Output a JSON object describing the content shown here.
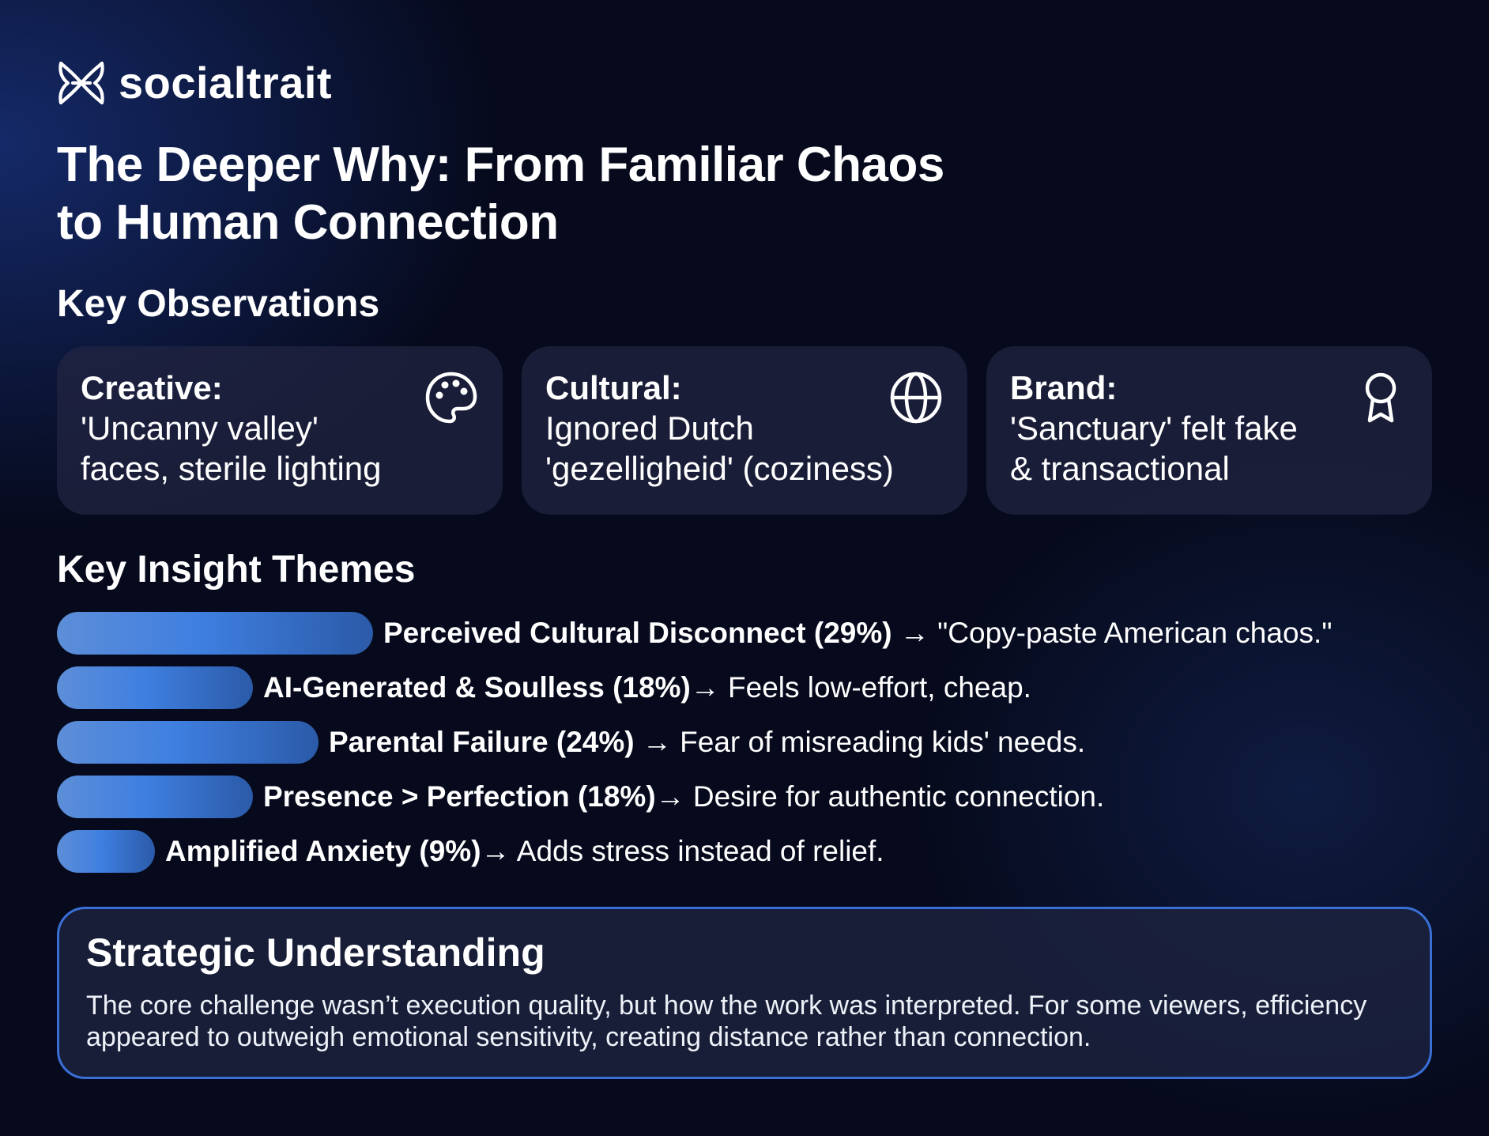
{
  "brand": {
    "name": "socialtrait",
    "icon": "butterfly-knot-logo"
  },
  "title": {
    "line1": "The Deeper Why: From Familiar Chaos",
    "line2": "to Human Connection"
  },
  "observations": {
    "heading": "Key Observations",
    "cards": [
      {
        "label": "Creative:",
        "line1": "'Uncanny valley'",
        "line2": "faces, sterile lighting",
        "icon": "palette-icon"
      },
      {
        "label": "Cultural:",
        "line1": "Ignored Dutch",
        "line2": "'gezelligheid' (coziness)",
        "icon": "globe-icon"
      },
      {
        "label": "Brand:",
        "line1": "'Sanctuary' felt fake",
        "line2": "& transactional",
        "icon": "award-ribbon-icon"
      }
    ]
  },
  "themes": {
    "heading": "Key Insight Themes",
    "items": [
      {
        "name": "Perceived Cultural Disconnect (29%)",
        "desc": " → \"Copy-paste American chaos.\"",
        "percent": 29
      },
      {
        "name": "AI-Generated & Soulless (18%)",
        "desc": "→ Feels low-effort, cheap.",
        "percent": 18
      },
      {
        "name": "Parental Failure (24%)",
        "desc": " → Fear of misreading kids' needs.",
        "percent": 24
      },
      {
        "name": "Presence > Perfection (18%)",
        "desc": "→ Desire for authentic connection.",
        "percent": 18
      },
      {
        "name": "Amplified Anxiety (9%)",
        "desc": "→ Adds stress instead of relief.",
        "percent": 9
      }
    ]
  },
  "strategy": {
    "title": "Strategic Understanding",
    "body": "The core challenge wasn’t execution quality, but how the work was interpreted. For some viewers, efficiency appeared to outweigh emotional sensitivity, creating distance rather than connection."
  },
  "colors": {
    "background": "#060a1c",
    "accent": "#3f7fe0",
    "card": "#222642",
    "border": "#3a6fd8"
  }
}
